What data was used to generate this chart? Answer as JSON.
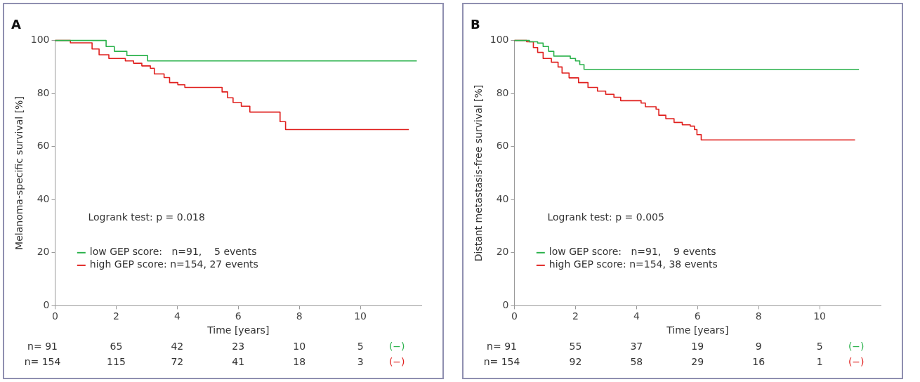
{
  "chart_data": [
    {
      "type": "step",
      "title": "A",
      "xlabel": "Time [years]",
      "ylabel": "Melanoma-specific survival [%]",
      "xlim": [
        0,
        12
      ],
      "xticks": [
        0,
        2,
        4,
        6,
        8,
        10
      ],
      "ylim": [
        0,
        100
      ],
      "yticks": [
        0,
        20,
        40,
        60,
        80,
        100
      ],
      "legend": "bottom left",
      "marker": "none",
      "grid": false,
      "series": [
        {
          "name": "low GEP score:   n=91,    5 events",
          "color": "#2bb24c",
          "x": [
            0,
            1.67,
            1.94,
            2.35,
            3.03,
            11.85
          ],
          "values": [
            100,
            97.7,
            95.9,
            94.3,
            92.3,
            92.3
          ]
        },
        {
          "name": "high GEP score: n=154, 27 events",
          "color": "#e0201e",
          "x": [
            0,
            0.5,
            1.21,
            1.44,
            1.76,
            2.3,
            2.57,
            2.84,
            3.12,
            3.25,
            3.57,
            3.75,
            4.02,
            4.25,
            5.47,
            5.65,
            5.83,
            6.1,
            6.38,
            7.37,
            7.55,
            11.59
          ],
          "values": [
            100,
            99.1,
            96.8,
            94.6,
            93.2,
            92.3,
            91.4,
            90.4,
            89.5,
            87.4,
            86.0,
            84.1,
            83.3,
            82.3,
            80.6,
            78.4,
            76.6,
            75.2,
            73.0,
            69.4,
            66.4,
            66.4
          ]
        }
      ],
      "annotations": [
        "Logrank test: p = 0.018",
        "n= 91",
        "65",
        "42",
        "23",
        "10",
        "5",
        "(−)",
        "n= 154",
        "115",
        "72",
        "41",
        "18",
        "3",
        "(−)"
      ]
    },
    {
      "type": "step",
      "title": "B",
      "xlabel": "Time [years]",
      "ylabel": "Distant metastasis-free survival [%]",
      "xlim": [
        0,
        12
      ],
      "xticks": [
        0,
        2,
        4,
        6,
        8,
        10
      ],
      "ylim": [
        0,
        100
      ],
      "yticks": [
        0,
        20,
        40,
        60,
        80,
        100
      ],
      "legend": "bottom left",
      "marker": "none",
      "grid": false,
      "series": [
        {
          "name": "low GEP score:   n=91,    9 events",
          "color": "#2bb24c",
          "x": [
            0,
            0.49,
            0.76,
            0.94,
            1.12,
            1.29,
            1.83,
            2.0,
            2.14,
            2.28,
            11.29
          ],
          "values": [
            100,
            99.5,
            99,
            97.7,
            95.9,
            94.1,
            93.2,
            92.3,
            90.9,
            89.1,
            89.1
          ]
        },
        {
          "name": "high GEP score: n=154, 38 events",
          "color": "#e0201e",
          "x": [
            0,
            0.4,
            0.62,
            0.76,
            0.94,
            1.21,
            1.43,
            1.56,
            1.79,
            2.1,
            2.41,
            2.72,
            2.99,
            3.26,
            3.48,
            4.15,
            4.29,
            4.64,
            4.73,
            4.96,
            5.23,
            5.5,
            5.76,
            5.9,
            5.98,
            6.12,
            11.16
          ],
          "values": [
            100,
            99.5,
            97.3,
            95.5,
            93.2,
            91.8,
            90,
            87.7,
            85.9,
            84.1,
            82.3,
            80.9,
            79.7,
            78.6,
            77.3,
            76.4,
            75,
            74.1,
            71.8,
            70.5,
            69.1,
            68.2,
            67.7,
            66.4,
            64.5,
            62.5,
            62.5
          ]
        }
      ],
      "annotations": [
        "Logrank test: p = 0.005",
        "n= 91",
        "55",
        "37",
        "19",
        "9",
        "5",
        "(−)",
        "n= 154",
        "92",
        "58",
        "29",
        "16",
        "1",
        "(−)"
      ]
    }
  ]
}
